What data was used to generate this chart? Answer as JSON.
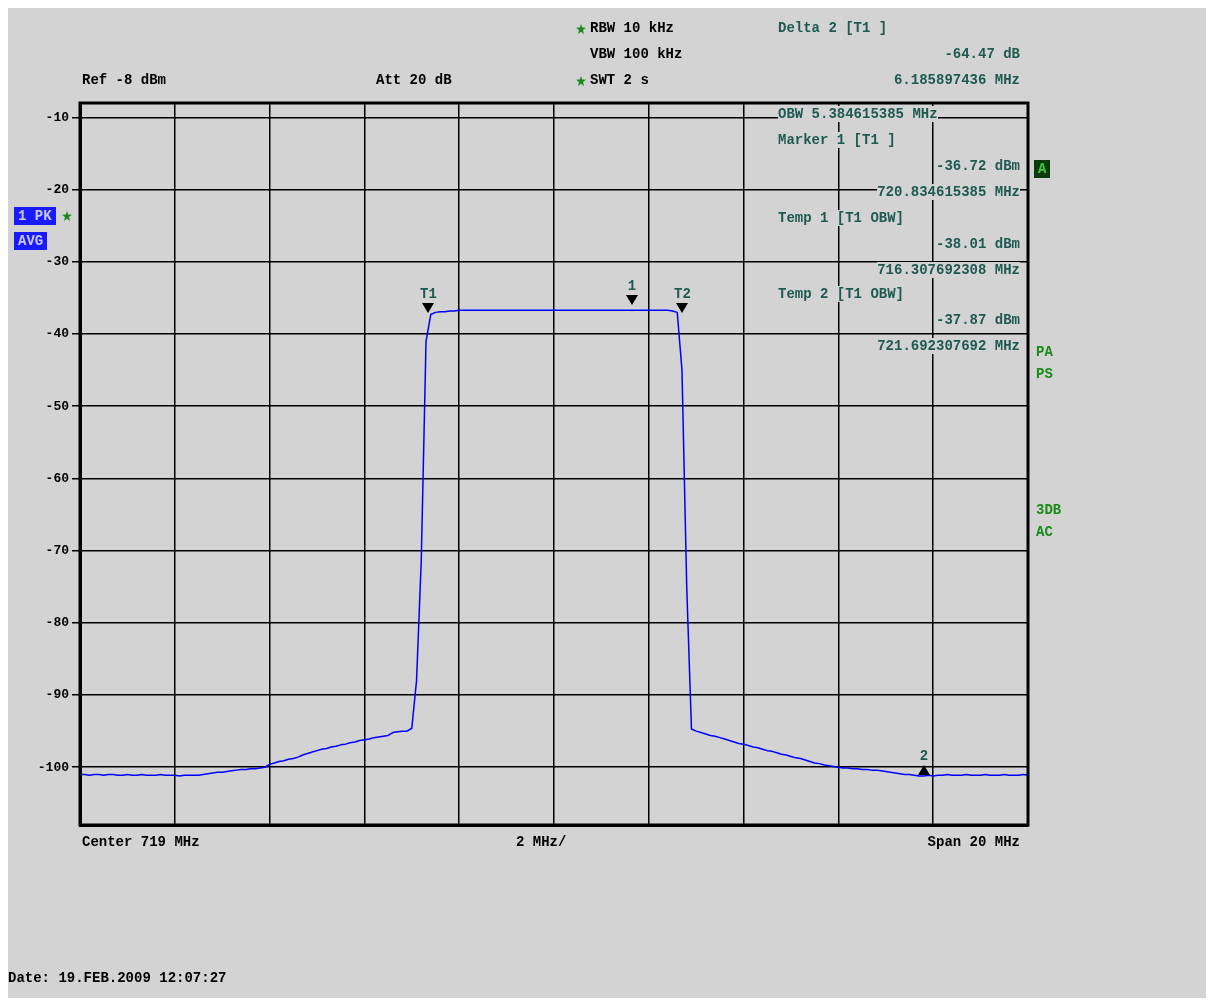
{
  "chart_data": {
    "type": "line",
    "annotations": [
      "RBW 10 kHz",
      "VBW 100 kHz",
      "SWT 2 s",
      "Ref -8 dBm",
      "Att 20 dB",
      "Delta 2 [T1 ]",
      "-64.47 dB",
      "6.185897436 MHz",
      "OBW 5.384615385 MHz",
      "Marker 1 [T1 ]",
      "-36.72 dBm",
      "720.834615385 MHz",
      "Temp 1 [T1 OBW]",
      "-38.01 dBm",
      "716.307692308 MHz",
      "Temp 2 [T1 OBW]",
      "-37.87 dBm",
      "721.692307692 MHz",
      "1 PK",
      "AVG",
      "A",
      "PA",
      "PS",
      "3DB",
      "AC",
      "Center 719 MHz",
      "2 MHz/",
      "Span 20 MHz",
      "Date: 19.FEB.2009 12:07:27",
      "T1",
      "1",
      "T2",
      "2"
    ],
    "categories": [
      null,
      null,
      null,
      null,
      null,
      null,
      null,
      null,
      null,
      null,
      null,
      null,
      null,
      null,
      null,
      null,
      null,
      null,
      null,
      null,
      null,
      null,
      null,
      null,
      null,
      null,
      null,
      null,
      null,
      null,
      null,
      null,
      null,
      null,
      null,
      null,
      null,
      null,
      null,
      null,
      null,
      null,
      null,
      null,
      null,
      null,
      null,
      null,
      null,
      null,
      null,
      null,
      null,
      null,
      null,
      null,
      null,
      null,
      null,
      null,
      null,
      null,
      null,
      null,
      null,
      null,
      null,
      null,
      null,
      null,
      null,
      null,
      null,
      null,
      null,
      null,
      null,
      null,
      null,
      null,
      null,
      null,
      null,
      null,
      null,
      null,
      null,
      null,
      null,
      null,
      null,
      null,
      null,
      null,
      null,
      null,
      null,
      null,
      null,
      null,
      null,
      null,
      null,
      null,
      null,
      null,
      null,
      null,
      null,
      null,
      null,
      null,
      null,
      null,
      null,
      null,
      null,
      null,
      null,
      null,
      null,
      null,
      null,
      null,
      null,
      null,
      null,
      null,
      null,
      null,
      null,
      null,
      null,
      null,
      null,
      null,
      null,
      null,
      null,
      null,
      null,
      null,
      null,
      null,
      null,
      null,
      null,
      null,
      null,
      null,
      null,
      null,
      null,
      null,
      null,
      null,
      null,
      null,
      null,
      null,
      null,
      null,
      null,
      null,
      null,
      null,
      null,
      null,
      null,
      null,
      null,
      null,
      null,
      null,
      null,
      null,
      null,
      null,
      null,
      null,
      null,
      null,
      null,
      null,
      null,
      null,
      null,
      null,
      null,
      null,
      null,
      null,
      null,
      null,
      null,
      null,
      null,
      null,
      null,
      null,
      null
    ],
    "series": [
      {
        "type": "line",
        "color": "#0000ff",
        "values": [
          -101.0,
          -101.0,
          -101.1,
          -101.0,
          -101.0,
          -101.1,
          -101.0,
          -101.0,
          -101.1,
          -101.1,
          -101.0,
          -101.1,
          -101.1,
          -101.0,
          -101.1,
          -101.1,
          -101.1,
          -101.0,
          -101.1,
          -101.1,
          -101.1,
          -101.2,
          -101.1,
          -101.1,
          -101.1,
          -101.1,
          -101.0,
          -100.9,
          -100.8,
          -100.7,
          -100.7,
          -100.6,
          -100.5,
          -100.4,
          -100.3,
          -100.3,
          -100.2,
          -100.2,
          -100.1,
          -100.0,
          -99.6,
          -99.4,
          -99.2,
          -99.1,
          -98.9,
          -98.8,
          -98.6,
          -98.3,
          -98.1,
          -97.9,
          -97.7,
          -97.5,
          -97.4,
          -97.2,
          -97.1,
          -96.9,
          -96.8,
          -96.6,
          -96.5,
          -96.3,
          -96.2,
          -96.1,
          -95.9,
          -95.8,
          -95.7,
          -95.6,
          -95.2,
          -95.1,
          -95.0,
          -95.0,
          -94.6,
          -88.0,
          -71.3,
          -41.0,
          -37.3,
          -37.0,
          -36.9,
          -36.9,
          -36.8,
          -36.8,
          -36.7,
          -36.7,
          -36.7,
          -36.7,
          -36.7,
          -36.7,
          -36.7,
          -36.7,
          -36.7,
          -36.7,
          -36.7,
          -36.7,
          -36.7,
          -36.7,
          -36.7,
          -36.7,
          -36.7,
          -36.7,
          -36.7,
          -36.7,
          -36.7,
          -36.7,
          -36.7,
          -36.7,
          -36.7,
          -36.7,
          -36.7,
          -36.7,
          -36.7,
          -36.7,
          -36.7,
          -36.7,
          -36.7,
          -36.7,
          -36.7,
          -36.7,
          -36.7,
          -36.7,
          -36.7,
          -36.7,
          -36.7,
          -36.7,
          -36.7,
          -36.7,
          -36.7,
          -36.8,
          -37.0,
          -45.0,
          -75.0,
          -94.7,
          -95.0,
          -95.2,
          -95.4,
          -95.6,
          -95.7,
          -95.9,
          -96.1,
          -96.3,
          -96.5,
          -96.7,
          -96.8,
          -97.0,
          -97.2,
          -97.3,
          -97.5,
          -97.7,
          -97.8,
          -98.0,
          -98.2,
          -98.3,
          -98.5,
          -98.7,
          -98.8,
          -99.0,
          -99.2,
          -99.4,
          -99.5,
          -99.7,
          -99.8,
          -99.9,
          -100.0,
          -100.1,
          -100.1,
          -100.2,
          -100.2,
          -100.3,
          -100.3,
          -100.4,
          -100.4,
          -100.5,
          -100.6,
          -100.7,
          -100.8,
          -100.9,
          -101.0,
          -101.0,
          -101.1,
          -101.2,
          -101.2,
          -101.1,
          -101.2,
          -101.1,
          -101.1,
          -101.0,
          -101.1,
          -101.1,
          -101.1,
          -101.0,
          -101.1,
          -101.1,
          -101.1,
          -101.0,
          -101.1,
          -101.1,
          -101.1,
          -101.0,
          -101.1,
          -101.1,
          -101.1,
          -101.0,
          -101.1
        ]
      }
    ],
    "ylim": [
      -108,
      -8
    ],
    "yticks": [
      -10,
      -20,
      -30,
      -40,
      -50,
      -60,
      -70,
      -80,
      -90,
      -100
    ],
    "grid": true,
    "tick_labels": "y"
  }
}
